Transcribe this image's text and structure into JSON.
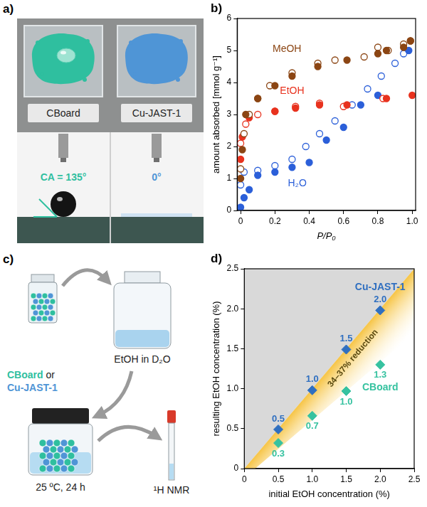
{
  "photo": {
    "panel": "a)",
    "samples": [
      {
        "name": "CBoard",
        "contact_angle": "CA = 135°",
        "color": "#2fbf9f"
      },
      {
        "name": "Cu-JAST-1",
        "contact_angle": "0°",
        "color": "#4f95d6"
      }
    ]
  },
  "diagram": {
    "panel": "c)",
    "sample": [
      "CBoard",
      "or",
      "Cu-JAST-1"
    ],
    "solution": "EtOH in D₂O",
    "condition": "25 ºC, 24 h",
    "analysis": "¹H NMR"
  },
  "chart_data": [
    {
      "type": "scatter",
      "panel": "b)",
      "x_label": "P/P₀",
      "y_label": "amount absorbed [mmol g⁻¹]",
      "xlim": [
        -0.02,
        1.02
      ],
      "xticks": [
        0,
        0.2,
        0.4,
        0.6,
        0.8,
        {
          "value": 1,
          "label": "1.0"
        }
      ],
      "ylim": [
        0,
        6
      ],
      "yticks": [
        0,
        1,
        2,
        3,
        4,
        5,
        6
      ],
      "grid": false,
      "series": [
        {
          "name": "MeOH",
          "color": "#8b4513",
          "marker": "circle",
          "adsorption": {
            "x": [
              0.0,
              0.01,
              0.03,
              0.1,
              0.2,
              0.3,
              0.45,
              0.62,
              0.8,
              0.85,
              0.95,
              0.99
            ],
            "values": [
              1.0,
              1.9,
              3.0,
              3.5,
              3.9,
              4.2,
              4.5,
              4.7,
              4.9,
              5.0,
              5.1,
              5.3
            ]
          },
          "desorption": {
            "x": [
              0.0,
              0.02,
              0.05,
              0.1,
              0.17,
              0.3,
              0.45,
              0.55,
              0.72,
              0.8,
              0.86,
              0.95,
              0.99
            ],
            "values": [
              1.3,
              2.4,
              3.0,
              3.5,
              3.9,
              4.3,
              4.6,
              4.7,
              4.8,
              5.1,
              5.0,
              5.2,
              5.3
            ]
          }
        },
        {
          "name": "EtOH",
          "color": "#e8321e",
          "marker": "circle",
          "adsorption": {
            "x": [
              0.0,
              0.01,
              0.05,
              0.2,
              0.32,
              0.46,
              0.62,
              0.85,
              1.0
            ],
            "values": [
              1.6,
              2.3,
              2.9,
              3.1,
              3.2,
              3.3,
              3.3,
              3.5,
              3.6
            ]
          },
          "desorption": {
            "x": [
              0.0,
              0.03,
              0.1,
              0.2,
              0.32,
              0.46,
              0.6,
              0.83
            ],
            "values": [
              2.1,
              2.7,
              3.0,
              3.1,
              3.25,
              3.35,
              3.25,
              3.5
            ]
          }
        },
        {
          "name": "H₂O",
          "color": "#2b5fd9",
          "marker": "circle",
          "adsorption": {
            "x": [
              0.0,
              0.02,
              0.05,
              0.1,
              0.2,
              0.3,
              0.4,
              0.5,
              0.6,
              0.7,
              0.8,
              0.98
            ],
            "values": [
              0.1,
              0.4,
              0.65,
              1.1,
              1.2,
              1.35,
              1.5,
              2.2,
              2.6,
              3.3,
              3.6,
              5.0
            ]
          },
          "desorption": {
            "x": [
              0.0,
              0.02,
              0.1,
              0.2,
              0.3,
              0.38,
              0.46,
              0.55,
              0.65,
              0.74,
              0.82,
              0.9,
              0.95
            ],
            "values": [
              0.8,
              1.2,
              1.25,
              1.4,
              1.6,
              2.0,
              2.4,
              2.8,
              3.3,
              3.8,
              4.2,
              4.6,
              4.9
            ]
          }
        }
      ]
    },
    {
      "type": "scatter",
      "panel": "d)",
      "x_label": "initial EtOH concentration (%)",
      "y_label": "resulting EtOH concentration (%)",
      "xlim": [
        0,
        2.5
      ],
      "xticks": [
        0,
        0.5,
        {
          "value": 1,
          "label": "1.0"
        },
        1.5,
        {
          "value": 2,
          "label": "2.0"
        },
        2.5
      ],
      "ylim": [
        0,
        2.5
      ],
      "yticks": [
        0,
        0.5,
        {
          "value": 1,
          "label": "1.0"
        },
        1.5,
        {
          "value": 2,
          "label": "2.0"
        },
        2.5
      ],
      "grid": false,
      "data_labels": true,
      "annotation": "34–37% reduction",
      "series": [
        {
          "name": "Cu-JAST-1",
          "color": "#2f6fc0",
          "marker": "diamond",
          "x": [
            0.5,
            1,
            1.5,
            2
          ],
          "values": [
            0.49,
            0.98,
            1.49,
            1.98
          ],
          "value_labels": [
            "0.5",
            "1.0",
            "1.5",
            "2.0"
          ]
        },
        {
          "name": "CBoard",
          "color": "#36c2a0",
          "marker": "diamond",
          "x": [
            0.5,
            1,
            1.5,
            2
          ],
          "values": [
            0.32,
            0.66,
            0.97,
            1.3
          ],
          "value_labels": [
            "0.3",
            "0.7",
            "1.0",
            "1.3"
          ]
        }
      ]
    }
  ]
}
